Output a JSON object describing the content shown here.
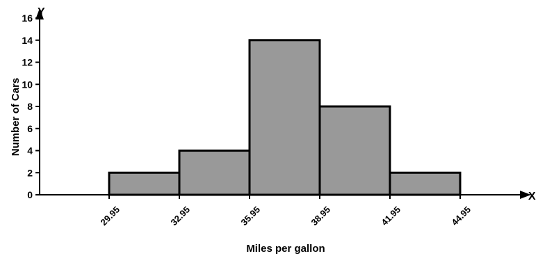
{
  "chart_data": {
    "type": "bar",
    "title": "",
    "xlabel": "Miles per gallon",
    "ylabel": "Number of Cars",
    "x_axis_letter": "X",
    "y_axis_letter": "Y",
    "bin_edges": [
      29.95,
      32.95,
      35.95,
      38.95,
      41.95,
      44.95
    ],
    "x_tick_labels": [
      "29.95",
      "32.95",
      "35.95",
      "38.95",
      "41.95",
      "44.95"
    ],
    "values": [
      2,
      4,
      14,
      8,
      2
    ],
    "ylim": [
      0,
      16
    ],
    "y_ticks": [
      0,
      2,
      4,
      6,
      8,
      10,
      12,
      14,
      16
    ],
    "grid": false,
    "bar_color": "#999999",
    "edge_color": "#000000"
  }
}
